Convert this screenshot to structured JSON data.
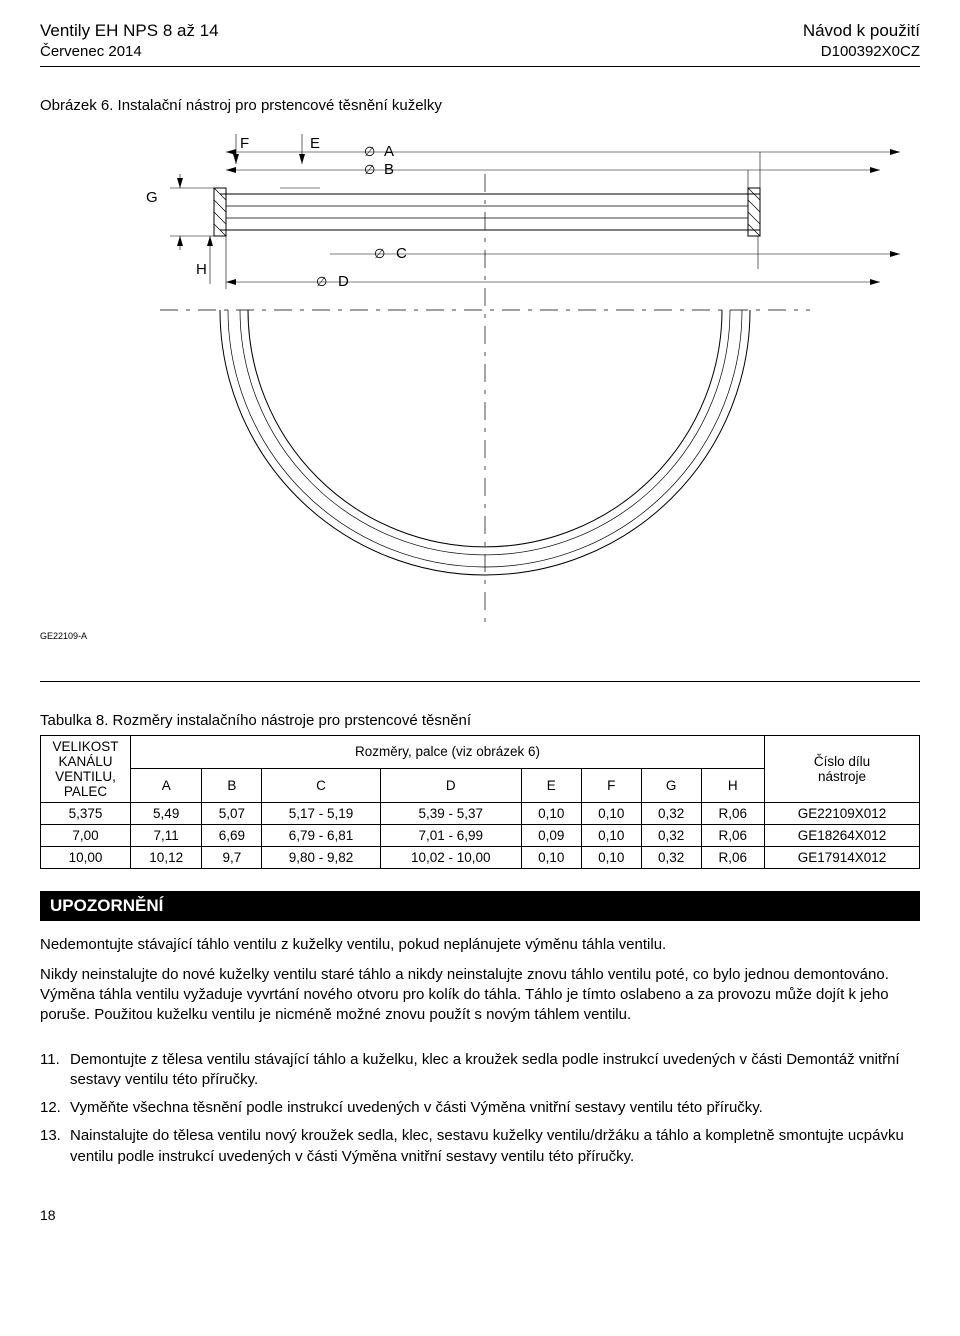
{
  "header": {
    "leftLine1": "Ventily EH NPS 8 až 14",
    "leftLine2": "Červenec 2014",
    "rightLine1": "Návod k použití",
    "rightLine2": "D100392X0CZ"
  },
  "figure": {
    "caption": "Obrázek 6. Instalační nástroj pro prstencové těsnění kuželky",
    "ref": "GE22109-A",
    "labels": {
      "A": "A",
      "B": "B",
      "C": "C",
      "D": "D",
      "E": "E",
      "F": "F",
      "G": "G",
      "H": "H"
    },
    "colors": {
      "stroke": "#000000",
      "background": "#ffffff"
    }
  },
  "table": {
    "caption": "Tabulka 8. Rozměry instalačního nástroje pro prstencové těsnění",
    "colHeader1_line1": "VELIKOST",
    "colHeader1_line2": "KANÁLU",
    "colHeader1_line3": "VENTILU,",
    "colHeader1_line4": "PALEC",
    "spanHeader": "Rozměry, palce (viz obrázek 6)",
    "dimCols": [
      "A",
      "B",
      "C",
      "D",
      "E",
      "F",
      "G",
      "H"
    ],
    "lastColHead_line1": "Číslo dílu",
    "lastColHead_line2": "nástroje",
    "rows": [
      [
        "5,375",
        "5,49",
        "5,07",
        "5,17 - 5,19",
        "5,39 - 5,37",
        "0,10",
        "0,10",
        "0,32",
        "R,06",
        "GE22109X012"
      ],
      [
        "7,00",
        "7,11",
        "6,69",
        "6,79 - 6,81",
        "7,01 - 6,99",
        "0,09",
        "0,10",
        "0,32",
        "R,06",
        "GE18264X012"
      ],
      [
        "10,00",
        "10,12",
        "9,7",
        "9,80 - 9,82",
        "10,02 - 10,00",
        "0,10",
        "0,10",
        "0,32",
        "R,06",
        "GE17914X012"
      ]
    ]
  },
  "warning": {
    "title": "UPOZORNĚNÍ",
    "p1": "Nedemontujte stávající táhlo ventilu z kuželky ventilu, pokud neplánujete výměnu táhla ventilu.",
    "p2": "Nikdy neinstalujte do nové kuželky ventilu staré táhlo a nikdy neinstalujte znovu táhlo ventilu poté, co bylo jednou demontováno. Výměna táhla ventilu vyžaduje vyvrtání nového otvoru pro kolík do táhla. Táhlo je tímto oslabeno a za provozu může dojít k jeho poruše. Použitou kuželku ventilu je nicméně možné znovu použít s novým táhlem ventilu."
  },
  "steps": [
    {
      "num": "11.",
      "text": "Demontujte z tělesa ventilu stávající táhlo a kuželku, klec a kroužek sedla podle instrukcí uvedených v části Demontáž vnitřní sestavy ventilu této příručky."
    },
    {
      "num": "12.",
      "text": "Vyměňte všechna těsnění podle instrukcí uvedených v části Výměna vnitřní sestavy ventilu této příručky."
    },
    {
      "num": "13.",
      "text": "Nainstalujte do tělesa ventilu nový kroužek sedla, klec, sestavu kuželky ventilu/držáku a táhlo a kompletně smontujte ucpávku ventilu podle instrukcí uvedených v části Výměna vnitřní sestavy ventilu této příručky."
    }
  ],
  "pageNumber": "18"
}
